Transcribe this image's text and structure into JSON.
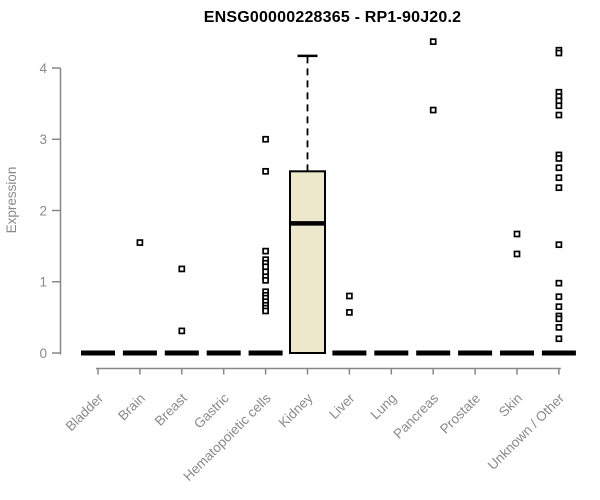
{
  "chart_data": {
    "type": "boxplot",
    "title": "ENSG00000228365 - RP1-90J20.2",
    "ylabel": "Expression",
    "xlabel": "",
    "yticks": [
      0,
      1,
      2,
      3,
      4
    ],
    "ylim": [
      0,
      4.45
    ],
    "grid": false,
    "legend": null,
    "marker": "open-square",
    "colors": {
      "box_fill": "#EDE7CB",
      "box_stroke": "#000000",
      "median": "#000000",
      "collapsed_box": "#000000",
      "axis": "#878787",
      "tick_label": "#8A8A8A",
      "title": "#000000",
      "outlier_stroke": "#000000",
      "outlier_fill": "#FFFFFF"
    },
    "categories": [
      "Bladder",
      "Brain",
      "Breast",
      "Gastric",
      "Hematopoietic cells",
      "Kidney",
      "Liver",
      "Lung",
      "Pancreas",
      "Prostate",
      "Skin",
      "Unknown / Other"
    ],
    "boxes": [
      {
        "category": "Bladder",
        "q1": 0,
        "median": 0,
        "q3": 0,
        "whisker_low": 0,
        "whisker_high": 0,
        "outliers": []
      },
      {
        "category": "Brain",
        "q1": 0,
        "median": 0,
        "q3": 0,
        "whisker_low": 0,
        "whisker_high": 0,
        "outliers": [
          1.55
        ]
      },
      {
        "category": "Breast",
        "q1": 0,
        "median": 0,
        "q3": 0,
        "whisker_low": 0,
        "whisker_high": 0,
        "outliers": [
          1.18,
          0.31
        ]
      },
      {
        "category": "Gastric",
        "q1": 0,
        "median": 0,
        "q3": 0,
        "whisker_low": 0,
        "whisker_high": 0,
        "outliers": []
      },
      {
        "category": "Hematopoietic cells",
        "q1": 0,
        "median": 0,
        "q3": 0,
        "whisker_low": 0,
        "whisker_high": 0,
        "outliers": [
          3.0,
          2.55,
          1.43,
          1.31,
          1.26,
          1.21,
          1.14,
          1.07,
          1.02,
          0.86,
          0.81,
          0.77,
          0.72,
          0.67,
          0.63,
          0.59
        ]
      },
      {
        "category": "Kidney",
        "q1": 0,
        "median": 1.82,
        "q3": 2.55,
        "whisker_low": 0,
        "whisker_high": 4.17,
        "outliers": []
      },
      {
        "category": "Liver",
        "q1": 0,
        "median": 0,
        "q3": 0,
        "whisker_low": 0,
        "whisker_high": 0,
        "outliers": [
          0.8,
          0.57
        ]
      },
      {
        "category": "Lung",
        "q1": 0,
        "median": 0,
        "q3": 0,
        "whisker_low": 0,
        "whisker_high": 0,
        "outliers": []
      },
      {
        "category": "Pancreas",
        "q1": 0,
        "median": 0,
        "q3": 0,
        "whisker_low": 0,
        "whisker_high": 0,
        "outliers": [
          4.37,
          3.41
        ]
      },
      {
        "category": "Prostate",
        "q1": 0,
        "median": 0,
        "q3": 0,
        "whisker_low": 0,
        "whisker_high": 0,
        "outliers": []
      },
      {
        "category": "Skin",
        "q1": 0,
        "median": 0,
        "q3": 0,
        "whisker_low": 0,
        "whisker_high": 0,
        "outliers": [
          1.67,
          1.39
        ]
      },
      {
        "category": "Unknown / Other",
        "q1": 0,
        "median": 0,
        "q3": 0,
        "whisker_low": 0,
        "whisker_high": 0,
        "outliers": [
          4.25,
          4.21,
          3.66,
          3.6,
          3.54,
          3.47,
          3.34,
          2.78,
          2.73,
          2.6,
          2.46,
          2.32,
          1.52,
          0.98,
          0.79,
          0.65,
          0.52,
          0.48,
          0.36,
          0.2
        ]
      }
    ]
  }
}
